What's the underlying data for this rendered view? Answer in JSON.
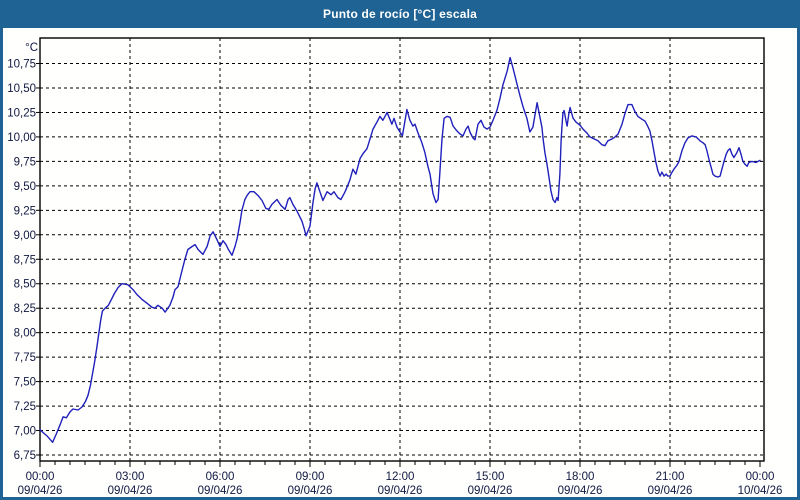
{
  "window": {
    "title": "Punto de rocío [°C] escala",
    "title_bar_color": "#1e6394",
    "frame_color": "#1e6394",
    "content_background": "#fffffe"
  },
  "chart_data": {
    "type": "line",
    "title": "Punto de rocío [°C] escala",
    "unit_label": "°C",
    "xlabel": "",
    "ylabel": "°C",
    "ylim": [
      6.75,
      10.75
    ],
    "y_tick_step": 0.25,
    "x_range_hours": [
      0,
      24
    ],
    "grid": "dashed",
    "legend_position": "none",
    "colors": {
      "line": "#2020bb",
      "grid": "#000000",
      "axis": "#000000",
      "tick_label": "#101840",
      "plot_background": "#fffffe"
    },
    "y_ticks": [
      {
        "value": 10.75,
        "label": "10,75"
      },
      {
        "value": 10.5,
        "label": "10,50"
      },
      {
        "value": 10.25,
        "label": "10,25"
      },
      {
        "value": 10.0,
        "label": "10,00"
      },
      {
        "value": 9.75,
        "label": "9,75"
      },
      {
        "value": 9.5,
        "label": "9,50"
      },
      {
        "value": 9.25,
        "label": "9,25"
      },
      {
        "value": 9.0,
        "label": "9,00"
      },
      {
        "value": 8.75,
        "label": "8,75"
      },
      {
        "value": 8.5,
        "label": "8,50"
      },
      {
        "value": 8.25,
        "label": "8,25"
      },
      {
        "value": 8.0,
        "label": "8,00"
      },
      {
        "value": 7.75,
        "label": "7,75"
      },
      {
        "value": 7.5,
        "label": "7,50"
      },
      {
        "value": 7.25,
        "label": "7,25"
      },
      {
        "value": 7.0,
        "label": "7,00"
      },
      {
        "value": 6.75,
        "label": "6,75"
      }
    ],
    "x_ticks": [
      {
        "hour": 0,
        "time": "00:00",
        "date": "09/04/26"
      },
      {
        "hour": 3,
        "time": "03:00",
        "date": "09/04/26"
      },
      {
        "hour": 6,
        "time": "06:00",
        "date": "09/04/26"
      },
      {
        "hour": 9,
        "time": "09:00",
        "date": "09/04/26"
      },
      {
        "hour": 12,
        "time": "12:00",
        "date": "09/04/26"
      },
      {
        "hour": 15,
        "time": "15:00",
        "date": "09/04/26"
      },
      {
        "hour": 18,
        "time": "18:00",
        "date": "09/04/26"
      },
      {
        "hour": 21,
        "time": "21:00",
        "date": "09/04/26"
      },
      {
        "hour": 24,
        "time": "00:00",
        "date": "10/04/26"
      }
    ],
    "series": [
      {
        "name": "Punto de rocío [°C]",
        "color": "#2020bb",
        "points": [
          [
            0.0,
            7.01
          ],
          [
            0.1,
            6.98
          ],
          [
            0.25,
            6.94
          ],
          [
            0.42,
            6.88
          ],
          [
            0.55,
            6.97
          ],
          [
            0.67,
            7.06
          ],
          [
            0.77,
            7.14
          ],
          [
            0.88,
            7.13
          ],
          [
            1.0,
            7.19
          ],
          [
            1.1,
            7.22
          ],
          [
            1.27,
            7.21
          ],
          [
            1.4,
            7.24
          ],
          [
            1.52,
            7.3
          ],
          [
            1.6,
            7.36
          ],
          [
            1.68,
            7.46
          ],
          [
            1.75,
            7.58
          ],
          [
            1.82,
            7.7
          ],
          [
            1.87,
            7.8
          ],
          [
            1.9,
            7.86
          ],
          [
            1.95,
            7.97
          ],
          [
            2.02,
            8.12
          ],
          [
            2.08,
            8.22
          ],
          [
            2.17,
            8.25
          ],
          [
            2.28,
            8.28
          ],
          [
            2.38,
            8.34
          ],
          [
            2.48,
            8.4
          ],
          [
            2.6,
            8.46
          ],
          [
            2.73,
            8.5
          ],
          [
            2.93,
            8.49
          ],
          [
            3.1,
            8.44
          ],
          [
            3.23,
            8.39
          ],
          [
            3.4,
            8.34
          ],
          [
            3.57,
            8.3
          ],
          [
            3.73,
            8.26
          ],
          [
            3.83,
            8.25
          ],
          [
            3.93,
            8.28
          ],
          [
            4.07,
            8.25
          ],
          [
            4.17,
            8.21
          ],
          [
            4.33,
            8.28
          ],
          [
            4.43,
            8.36
          ],
          [
            4.5,
            8.44
          ],
          [
            4.6,
            8.47
          ],
          [
            4.73,
            8.63
          ],
          [
            4.83,
            8.75
          ],
          [
            4.93,
            8.85
          ],
          [
            5.07,
            8.88
          ],
          [
            5.17,
            8.9
          ],
          [
            5.27,
            8.85
          ],
          [
            5.43,
            8.8
          ],
          [
            5.57,
            8.88
          ],
          [
            5.67,
            8.99
          ],
          [
            5.77,
            9.03
          ],
          [
            5.9,
            8.95
          ],
          [
            6.0,
            8.88
          ],
          [
            6.1,
            8.94
          ],
          [
            6.2,
            8.9
          ],
          [
            6.28,
            8.85
          ],
          [
            6.4,
            8.79
          ],
          [
            6.5,
            8.88
          ],
          [
            6.57,
            8.96
          ],
          [
            6.67,
            9.13
          ],
          [
            6.73,
            9.25
          ],
          [
            6.83,
            9.36
          ],
          [
            6.9,
            9.4
          ],
          [
            7.0,
            9.44
          ],
          [
            7.13,
            9.44
          ],
          [
            7.27,
            9.4
          ],
          [
            7.4,
            9.35
          ],
          [
            7.53,
            9.27
          ],
          [
            7.63,
            9.26
          ],
          [
            7.73,
            9.31
          ],
          [
            7.9,
            9.36
          ],
          [
            8.03,
            9.3
          ],
          [
            8.17,
            9.26
          ],
          [
            8.27,
            9.36
          ],
          [
            8.33,
            9.38
          ],
          [
            8.43,
            9.31
          ],
          [
            8.57,
            9.24
          ],
          [
            8.73,
            9.14
          ],
          [
            8.8,
            9.07
          ],
          [
            8.87,
            8.99
          ],
          [
            9.0,
            9.09
          ],
          [
            9.1,
            9.33
          ],
          [
            9.17,
            9.47
          ],
          [
            9.23,
            9.53
          ],
          [
            9.33,
            9.44
          ],
          [
            9.43,
            9.35
          ],
          [
            9.57,
            9.44
          ],
          [
            9.7,
            9.41
          ],
          [
            9.8,
            9.44
          ],
          [
            9.93,
            9.38
          ],
          [
            10.03,
            9.36
          ],
          [
            10.17,
            9.44
          ],
          [
            10.33,
            9.56
          ],
          [
            10.43,
            9.67
          ],
          [
            10.53,
            9.62
          ],
          [
            10.67,
            9.78
          ],
          [
            10.77,
            9.83
          ],
          [
            10.9,
            9.88
          ],
          [
            11.0,
            9.98
          ],
          [
            11.1,
            10.08
          ],
          [
            11.23,
            10.15
          ],
          [
            11.33,
            10.21
          ],
          [
            11.43,
            10.17
          ],
          [
            11.57,
            10.25
          ],
          [
            11.73,
            10.13
          ],
          [
            11.8,
            10.19
          ],
          [
            11.9,
            10.1
          ],
          [
            12.0,
            10.05
          ],
          [
            12.08,
            10.01
          ],
          [
            12.23,
            10.28
          ],
          [
            12.33,
            10.17
          ],
          [
            12.43,
            10.11
          ],
          [
            12.5,
            10.13
          ],
          [
            12.6,
            10.04
          ],
          [
            12.73,
            9.94
          ],
          [
            12.83,
            9.84
          ],
          [
            12.93,
            9.7
          ],
          [
            13.0,
            9.62
          ],
          [
            13.1,
            9.42
          ],
          [
            13.2,
            9.33
          ],
          [
            13.27,
            9.36
          ],
          [
            13.33,
            9.64
          ],
          [
            13.4,
            9.98
          ],
          [
            13.47,
            10.19
          ],
          [
            13.57,
            10.21
          ],
          [
            13.67,
            10.2
          ],
          [
            13.77,
            10.11
          ],
          [
            13.9,
            10.06
          ],
          [
            14.0,
            10.03
          ],
          [
            14.1,
            10.01
          ],
          [
            14.2,
            10.08
          ],
          [
            14.27,
            10.11
          ],
          [
            14.33,
            10.05
          ],
          [
            14.43,
            9.99
          ],
          [
            14.5,
            9.97
          ],
          [
            14.6,
            10.13
          ],
          [
            14.7,
            10.17
          ],
          [
            14.8,
            10.1
          ],
          [
            14.9,
            10.08
          ],
          [
            15.0,
            10.1
          ],
          [
            15.1,
            10.17
          ],
          [
            15.23,
            10.27
          ],
          [
            15.33,
            10.39
          ],
          [
            15.43,
            10.53
          ],
          [
            15.57,
            10.67
          ],
          [
            15.67,
            10.81
          ],
          [
            15.77,
            10.7
          ],
          [
            15.9,
            10.54
          ],
          [
            16.0,
            10.42
          ],
          [
            16.1,
            10.31
          ],
          [
            16.23,
            10.19
          ],
          [
            16.33,
            10.05
          ],
          [
            16.43,
            10.1
          ],
          [
            16.57,
            10.35
          ],
          [
            16.73,
            10.1
          ],
          [
            16.77,
            9.98
          ],
          [
            16.83,
            9.84
          ],
          [
            16.9,
            9.72
          ],
          [
            16.97,
            9.58
          ],
          [
            17.03,
            9.45
          ],
          [
            17.1,
            9.36
          ],
          [
            17.17,
            9.33
          ],
          [
            17.23,
            9.38
          ],
          [
            17.27,
            9.35
          ],
          [
            17.33,
            9.62
          ],
          [
            17.37,
            9.96
          ],
          [
            17.4,
            10.11
          ],
          [
            17.43,
            10.24
          ],
          [
            17.47,
            10.27
          ],
          [
            17.53,
            10.17
          ],
          [
            17.57,
            10.11
          ],
          [
            17.63,
            10.24
          ],
          [
            17.67,
            10.3
          ],
          [
            17.77,
            10.19
          ],
          [
            17.87,
            10.15
          ],
          [
            18.0,
            10.12
          ],
          [
            18.1,
            10.08
          ],
          [
            18.23,
            10.04
          ],
          [
            18.33,
            10.0
          ],
          [
            18.47,
            9.98
          ],
          [
            18.6,
            9.96
          ],
          [
            18.73,
            9.92
          ],
          [
            18.83,
            9.91
          ],
          [
            18.93,
            9.96
          ],
          [
            19.07,
            9.98
          ],
          [
            19.17,
            10.0
          ],
          [
            19.27,
            10.03
          ],
          [
            19.4,
            10.13
          ],
          [
            19.5,
            10.24
          ],
          [
            19.6,
            10.33
          ],
          [
            19.73,
            10.33
          ],
          [
            19.83,
            10.26
          ],
          [
            19.93,
            10.21
          ],
          [
            20.07,
            10.18
          ],
          [
            20.17,
            10.16
          ],
          [
            20.27,
            10.1
          ],
          [
            20.33,
            10.06
          ],
          [
            20.4,
            9.96
          ],
          [
            20.47,
            9.84
          ],
          [
            20.53,
            9.74
          ],
          [
            20.6,
            9.65
          ],
          [
            20.67,
            9.6
          ],
          [
            20.73,
            9.64
          ],
          [
            20.8,
            9.6
          ],
          [
            20.87,
            9.62
          ],
          [
            20.93,
            9.6
          ],
          [
            21.0,
            9.6
          ],
          [
            21.07,
            9.64
          ],
          [
            21.13,
            9.67
          ],
          [
            21.23,
            9.71
          ],
          [
            21.3,
            9.75
          ],
          [
            21.4,
            9.86
          ],
          [
            21.5,
            9.94
          ],
          [
            21.6,
            9.99
          ],
          [
            21.73,
            10.01
          ],
          [
            21.87,
            10.0
          ],
          [
            22.0,
            9.96
          ],
          [
            22.1,
            9.94
          ],
          [
            22.17,
            9.92
          ],
          [
            22.23,
            9.86
          ],
          [
            22.3,
            9.77
          ],
          [
            22.37,
            9.69
          ],
          [
            22.43,
            9.62
          ],
          [
            22.5,
            9.6
          ],
          [
            22.6,
            9.59
          ],
          [
            22.67,
            9.6
          ],
          [
            22.73,
            9.67
          ],
          [
            22.8,
            9.75
          ],
          [
            22.87,
            9.82
          ],
          [
            22.93,
            9.86
          ],
          [
            23.0,
            9.88
          ],
          [
            23.07,
            9.82
          ],
          [
            23.13,
            9.79
          ],
          [
            23.23,
            9.84
          ],
          [
            23.3,
            9.89
          ],
          [
            23.37,
            9.82
          ],
          [
            23.43,
            9.75
          ],
          [
            23.5,
            9.72
          ],
          [
            23.57,
            9.7
          ],
          [
            23.63,
            9.74
          ],
          [
            23.73,
            9.75
          ],
          [
            23.87,
            9.74
          ],
          [
            24.0,
            9.76
          ]
        ]
      }
    ]
  }
}
